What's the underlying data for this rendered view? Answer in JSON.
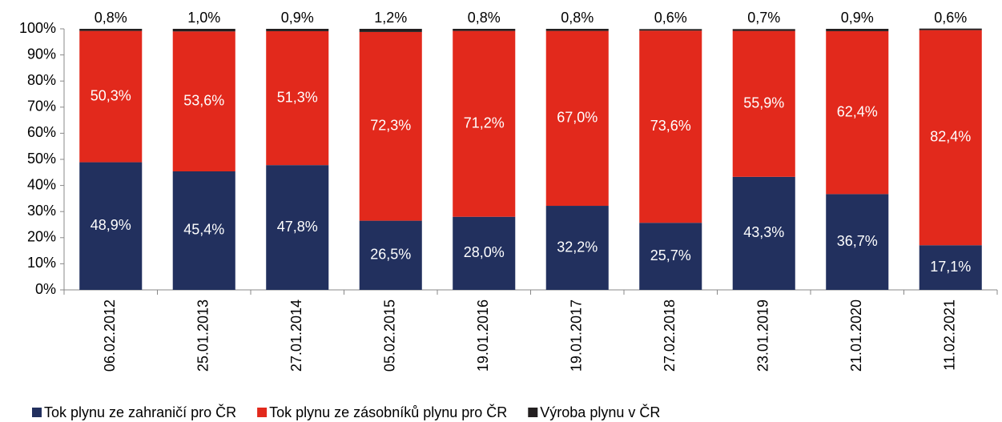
{
  "chart_data": {
    "type": "stacked_bar",
    "categories": [
      "06.02.2012",
      "25.01.2013",
      "27.01.2014",
      "05.02.2015",
      "19.01.2016",
      "19.01.2017",
      "27.02.2018",
      "23.01.2019",
      "21.01.2020",
      "11.02.2021"
    ],
    "series": [
      {
        "name": "Tok plynu ze zahraničí pro ČR",
        "color": "#22305e",
        "values": [
          48.9,
          45.4,
          47.8,
          26.5,
          28.0,
          32.2,
          25.7,
          43.3,
          36.7,
          17.1
        ],
        "value_labels": [
          "48,9%",
          "45,4%",
          "47,8%",
          "26,5%",
          "28,0%",
          "32,2%",
          "25,7%",
          "43,3%",
          "36,7%",
          "17,1%"
        ]
      },
      {
        "name": "Tok plynu ze zásobníků plynu pro ČR",
        "color": "#e2291c",
        "values": [
          50.3,
          53.6,
          51.3,
          72.3,
          71.2,
          67.0,
          73.6,
          55.9,
          62.4,
          82.4
        ],
        "value_labels": [
          "50,3%",
          "53,6%",
          "51,3%",
          "72,3%",
          "71,2%",
          "67,0%",
          "73,6%",
          "55,9%",
          "62,4%",
          "82,4%"
        ]
      },
      {
        "name": "Výroba plynu v ČR",
        "color": "#231f20",
        "values": [
          0.8,
          1.0,
          0.9,
          1.2,
          0.8,
          0.8,
          0.6,
          0.7,
          0.9,
          0.6
        ],
        "value_labels": [
          "0,8%",
          "1,0%",
          "0,9%",
          "1,2%",
          "0,8%",
          "0,8%",
          "0,6%",
          "0,7%",
          "0,9%",
          "0,6%"
        ]
      }
    ],
    "ylim": [
      0,
      100
    ],
    "yticks": [
      {
        "value": 0,
        "label": "0%"
      },
      {
        "value": 10,
        "label": "10%"
      },
      {
        "value": 20,
        "label": "20%"
      },
      {
        "value": 30,
        "label": "30%"
      },
      {
        "value": 40,
        "label": "40%"
      },
      {
        "value": 50,
        "label": "50%"
      },
      {
        "value": 60,
        "label": "60%"
      },
      {
        "value": 70,
        "label": "70%"
      },
      {
        "value": 80,
        "label": "80%"
      },
      {
        "value": 90,
        "label": "90%"
      },
      {
        "value": 100,
        "label": "100%"
      }
    ],
    "legend": "bottom"
  }
}
